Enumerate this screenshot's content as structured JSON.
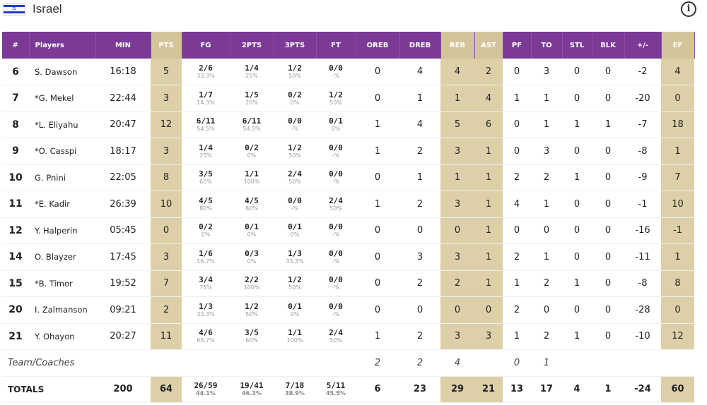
{
  "team": {
    "name": "Israel",
    "flag_icon": "israel-flag-icon",
    "info_icon": "info-icon",
    "info_symbol": "i"
  },
  "colors": {
    "header": "#7a3a96",
    "highlight": "#ddd0a8",
    "highlight_header": "#d3c49a"
  },
  "columns": {
    "num": "#",
    "players": "Players",
    "min": "MIN",
    "pts": "PTS",
    "fg": "FG",
    "two": "2PTS",
    "three": "3PTS",
    "ft": "FT",
    "oreb": "OREB",
    "dreb": "DREB",
    "reb": "REB",
    "ast": "AST",
    "pf": "PF",
    "to": "TO",
    "stl": "STL",
    "blk": "BLK",
    "pm": "+/-",
    "ef": "EF"
  },
  "players": [
    {
      "num": "6",
      "name": "S. Dawson",
      "min": "16:18",
      "pts": "5",
      "fg": "2/6",
      "fg_pct": "33.3%",
      "two": "1/4",
      "two_pct": "25%",
      "three": "1/2",
      "three_pct": "50%",
      "ft": "0/0",
      "ft_pct": "-%",
      "oreb": "0",
      "dreb": "4",
      "reb": "4",
      "ast": "2",
      "pf": "0",
      "to": "3",
      "stl": "0",
      "blk": "0",
      "pm": "-2",
      "ef": "4"
    },
    {
      "num": "7",
      "name": "*G. Mekel",
      "min": "22:44",
      "pts": "3",
      "fg": "1/7",
      "fg_pct": "14.3%",
      "two": "1/5",
      "two_pct": "20%",
      "three": "0/2",
      "three_pct": "0%",
      "ft": "1/2",
      "ft_pct": "50%",
      "oreb": "0",
      "dreb": "1",
      "reb": "1",
      "ast": "4",
      "pf": "1",
      "to": "1",
      "stl": "0",
      "blk": "0",
      "pm": "-20",
      "ef": "0"
    },
    {
      "num": "8",
      "name": "*L. Eliyahu",
      "min": "20:47",
      "pts": "12",
      "fg": "6/11",
      "fg_pct": "54.5%",
      "two": "6/11",
      "two_pct": "54.5%",
      "three": "0/0",
      "three_pct": "-%",
      "ft": "0/1",
      "ft_pct": "0%",
      "oreb": "1",
      "dreb": "4",
      "reb": "5",
      "ast": "6",
      "pf": "0",
      "to": "1",
      "stl": "1",
      "blk": "1",
      "pm": "-7",
      "ef": "18"
    },
    {
      "num": "9",
      "name": "*O. Casspi",
      "min": "18:17",
      "pts": "3",
      "fg": "1/4",
      "fg_pct": "25%",
      "two": "0/2",
      "two_pct": "0%",
      "three": "1/2",
      "three_pct": "50%",
      "ft": "0/0",
      "ft_pct": "-%",
      "oreb": "1",
      "dreb": "2",
      "reb": "3",
      "ast": "1",
      "pf": "0",
      "to": "3",
      "stl": "0",
      "blk": "0",
      "pm": "-8",
      "ef": "1"
    },
    {
      "num": "10",
      "name": "G. Pnini",
      "min": "22:05",
      "pts": "8",
      "fg": "3/5",
      "fg_pct": "60%",
      "two": "1/1",
      "two_pct": "100%",
      "three": "2/4",
      "three_pct": "50%",
      "ft": "0/0",
      "ft_pct": "-%",
      "oreb": "0",
      "dreb": "1",
      "reb": "1",
      "ast": "1",
      "pf": "2",
      "to": "2",
      "stl": "1",
      "blk": "0",
      "pm": "-9",
      "ef": "7"
    },
    {
      "num": "11",
      "name": "*E. Kadir",
      "min": "26:39",
      "pts": "10",
      "fg": "4/5",
      "fg_pct": "80%",
      "two": "4/5",
      "two_pct": "80%",
      "three": "0/0",
      "three_pct": "-%",
      "ft": "2/4",
      "ft_pct": "50%",
      "oreb": "1",
      "dreb": "2",
      "reb": "3",
      "ast": "1",
      "pf": "4",
      "to": "1",
      "stl": "0",
      "blk": "0",
      "pm": "-1",
      "ef": "10"
    },
    {
      "num": "12",
      "name": "Y. Halperin",
      "min": "05:45",
      "pts": "0",
      "fg": "0/2",
      "fg_pct": "0%",
      "two": "0/1",
      "two_pct": "0%",
      "three": "0/1",
      "three_pct": "0%",
      "ft": "0/0",
      "ft_pct": "-%",
      "oreb": "0",
      "dreb": "0",
      "reb": "0",
      "ast": "1",
      "pf": "0",
      "to": "0",
      "stl": "0",
      "blk": "0",
      "pm": "-16",
      "ef": "-1"
    },
    {
      "num": "14",
      "name": "O. Blayzer",
      "min": "17:45",
      "pts": "3",
      "fg": "1/6",
      "fg_pct": "16.7%",
      "two": "0/3",
      "two_pct": "0%",
      "three": "1/3",
      "three_pct": "33.3%",
      "ft": "0/0",
      "ft_pct": "-%",
      "oreb": "0",
      "dreb": "3",
      "reb": "3",
      "ast": "1",
      "pf": "2",
      "to": "1",
      "stl": "0",
      "blk": "0",
      "pm": "-11",
      "ef": "1"
    },
    {
      "num": "15",
      "name": "*B. Timor",
      "min": "19:52",
      "pts": "7",
      "fg": "3/4",
      "fg_pct": "75%",
      "two": "2/2",
      "two_pct": "100%",
      "three": "1/2",
      "three_pct": "50%",
      "ft": "0/0",
      "ft_pct": "-%",
      "oreb": "0",
      "dreb": "2",
      "reb": "2",
      "ast": "1",
      "pf": "1",
      "to": "2",
      "stl": "1",
      "blk": "0",
      "pm": "-8",
      "ef": "8"
    },
    {
      "num": "20",
      "name": "I. Zalmanson",
      "min": "09:21",
      "pts": "2",
      "fg": "1/3",
      "fg_pct": "33.3%",
      "two": "1/2",
      "two_pct": "50%",
      "three": "0/1",
      "three_pct": "0%",
      "ft": "0/0",
      "ft_pct": "-%",
      "oreb": "0",
      "dreb": "0",
      "reb": "0",
      "ast": "0",
      "pf": "2",
      "to": "0",
      "stl": "0",
      "blk": "0",
      "pm": "-28",
      "ef": "0"
    },
    {
      "num": "21",
      "name": "Y. Ohayon",
      "min": "20:27",
      "pts": "11",
      "fg": "4/6",
      "fg_pct": "66.7%",
      "two": "3/5",
      "two_pct": "60%",
      "three": "1/1",
      "three_pct": "100%",
      "ft": "2/4",
      "ft_pct": "50%",
      "oreb": "1",
      "dreb": "2",
      "reb": "3",
      "ast": "3",
      "pf": "1",
      "to": "2",
      "stl": "1",
      "blk": "0",
      "pm": "-10",
      "ef": "12"
    }
  ],
  "team_coaches": {
    "label": "Team/Coaches",
    "oreb": "2",
    "dreb": "2",
    "reb": "4",
    "pf": "0",
    "to": "1"
  },
  "totals": {
    "label": "TOTALS",
    "min": "200",
    "pts": "64",
    "fg": "26/59",
    "fg_pct": "44.1%",
    "two": "19/41",
    "two_pct": "46.3%",
    "three": "7/18",
    "three_pct": "38.9%",
    "ft": "5/11",
    "ft_pct": "45.5%",
    "oreb": "6",
    "dreb": "23",
    "reb": "29",
    "ast": "21",
    "pf": "13",
    "to": "17",
    "stl": "4",
    "blk": "1",
    "pm": "-24",
    "ef": "60"
  }
}
